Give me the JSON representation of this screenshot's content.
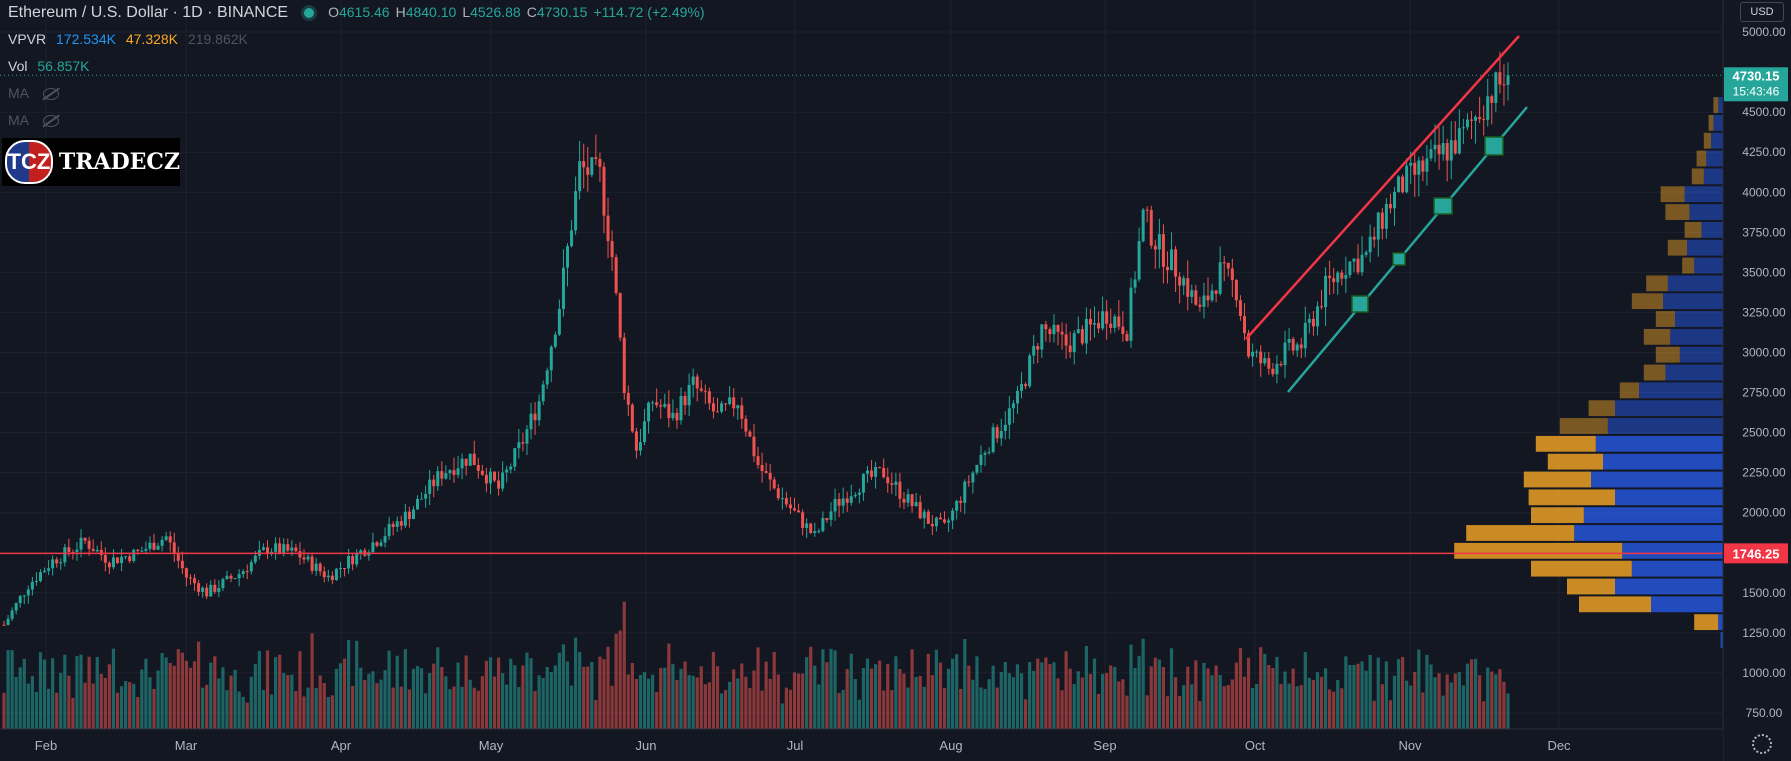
{
  "header": {
    "title": "Ethereum / U.S. Dollar · 1D · BINANCE",
    "ohlc": {
      "o_label": "O",
      "o": "4615.46",
      "h_label": "H",
      "h": "4840.10",
      "l_label": "L",
      "l": "4526.88",
      "c_label": "C",
      "c": "4730.15",
      "change": "+114.72 (+2.49%)"
    }
  },
  "indicators": {
    "vpvr": {
      "label": "VPVR",
      "v1": "172.534K",
      "v2": "47.328K",
      "v3": "219.862K"
    },
    "vol": {
      "label": "Vol",
      "value": "56.857K"
    },
    "ma1": {
      "label": "MA"
    },
    "ma2": {
      "label": "MA"
    }
  },
  "logo": {
    "seal": "TCZ",
    "word": "TRADECZ"
  },
  "currency_button": "USD",
  "colors": {
    "up": "#26a69a",
    "down": "#ef5350",
    "background": "#131722",
    "vpvr_up": "#2962ff",
    "vpvr_down": "#f9a825",
    "hline": "#f23645",
    "support_line": "#26a69a"
  },
  "icons": {
    "settings": "gear-icon",
    "visibility": "eye-off-icon"
  },
  "chart_data": {
    "type": "candlestick",
    "symbol": "ETHUSD",
    "timeframe": "1D",
    "x_ticks": [
      "Feb",
      "Mar",
      "Apr",
      "May",
      "Jun",
      "Jul",
      "Aug",
      "Sep",
      "Oct",
      "Nov",
      "Dec"
    ],
    "y_ticks": [
      750,
      1000,
      1250,
      1500,
      1750,
      2000,
      2250,
      2500,
      2750,
      3000,
      3250,
      3500,
      3750,
      4000,
      4250,
      4500,
      5000
    ],
    "y_tick_labels": [
      "750.00",
      "1000.00",
      "1250.00",
      "1500.00",
      "1750.00",
      "2000.00",
      "2250.00",
      "2500.00",
      "2750.00",
      "3000.00",
      "3250.00",
      "3500.00",
      "3750.00",
      "4000.00",
      "4250.00",
      "4500.00",
      "5000.00"
    ],
    "ylim": [
      650,
      5200
    ],
    "last_price": {
      "value": 4730.15,
      "label": "4730.15",
      "countdown": "15:43:46"
    },
    "horizontal_line": {
      "value": 1746.25,
      "label": "1746.25"
    },
    "price_anchors": [
      [
        0,
        1300
      ],
      [
        6,
        1550
      ],
      [
        12,
        1700
      ],
      [
        20,
        1820
      ],
      [
        26,
        1700
      ],
      [
        33,
        1750
      ],
      [
        40,
        1850
      ],
      [
        45,
        1600
      ],
      [
        50,
        1500
      ],
      [
        58,
        1620
      ],
      [
        65,
        1780
      ],
      [
        72,
        1750
      ],
      [
        80,
        1600
      ],
      [
        85,
        1700
      ],
      [
        93,
        1850
      ],
      [
        100,
        2000
      ],
      [
        108,
        2250
      ],
      [
        115,
        2350
      ],
      [
        122,
        2150
      ],
      [
        128,
        2450
      ],
      [
        132,
        2700
      ],
      [
        137,
        3300
      ],
      [
        142,
        4150
      ],
      [
        147,
        4100
      ],
      [
        150,
        3600
      ],
      [
        153,
        2800
      ],
      [
        156,
        2400
      ],
      [
        160,
        2700
      ],
      [
        165,
        2600
      ],
      [
        170,
        2800
      ],
      [
        176,
        2600
      ],
      [
        181,
        2700
      ],
      [
        186,
        2300
      ],
      [
        190,
        2150
      ],
      [
        195,
        2000
      ],
      [
        200,
        1850
      ],
      [
        205,
        2050
      ],
      [
        212,
        2200
      ],
      [
        217,
        2250
      ],
      [
        222,
        2100
      ],
      [
        228,
        1950
      ],
      [
        232,
        1900
      ],
      [
        236,
        2100
      ],
      [
        242,
        2400
      ],
      [
        250,
        2700
      ],
      [
        256,
        3150
      ],
      [
        262,
        3050
      ],
      [
        268,
        3150
      ],
      [
        272,
        3250
      ],
      [
        277,
        3150
      ],
      [
        281,
        3850
      ],
      [
        285,
        3650
      ],
      [
        290,
        3500
      ],
      [
        295,
        3250
      ],
      [
        300,
        3500
      ],
      [
        304,
        3400
      ],
      [
        307,
        3000
      ],
      [
        312,
        2900
      ],
      [
        316,
        3000
      ],
      [
        320,
        3050
      ],
      [
        326,
        3400
      ],
      [
        331,
        3550
      ],
      [
        336,
        3600
      ],
      [
        341,
        3900
      ],
      [
        345,
        4050
      ],
      [
        350,
        4150
      ],
      [
        355,
        4250
      ],
      [
        360,
        4350
      ],
      [
        366,
        4600
      ],
      [
        371,
        4730
      ]
    ],
    "profile_levels_count": 31,
    "profile_up": [
      0.01,
      0.02,
      0.3,
      0.45,
      0.38,
      0.42,
      0.62,
      0.58,
      0.45,
      0.55,
      0.5,
      0.53,
      0.48,
      0.45,
      0.35,
      0.24,
      0.18,
      0.22,
      0.2,
      0.25,
      0.23,
      0.12,
      0.15,
      0.09,
      0.14,
      0.16,
      0.08,
      0.07,
      0.05,
      0.04,
      0.02
    ],
    "profile_down": [
      0.0,
      0.1,
      0.3,
      0.2,
      0.42,
      0.7,
      0.45,
      0.22,
      0.36,
      0.28,
      0.23,
      0.25,
      0.2,
      0.11,
      0.08,
      0.09,
      0.1,
      0.11,
      0.08,
      0.13,
      0.09,
      0.05,
      0.08,
      0.07,
      0.1,
      0.1,
      0.05,
      0.04,
      0.03,
      0.02,
      0.02
    ]
  }
}
